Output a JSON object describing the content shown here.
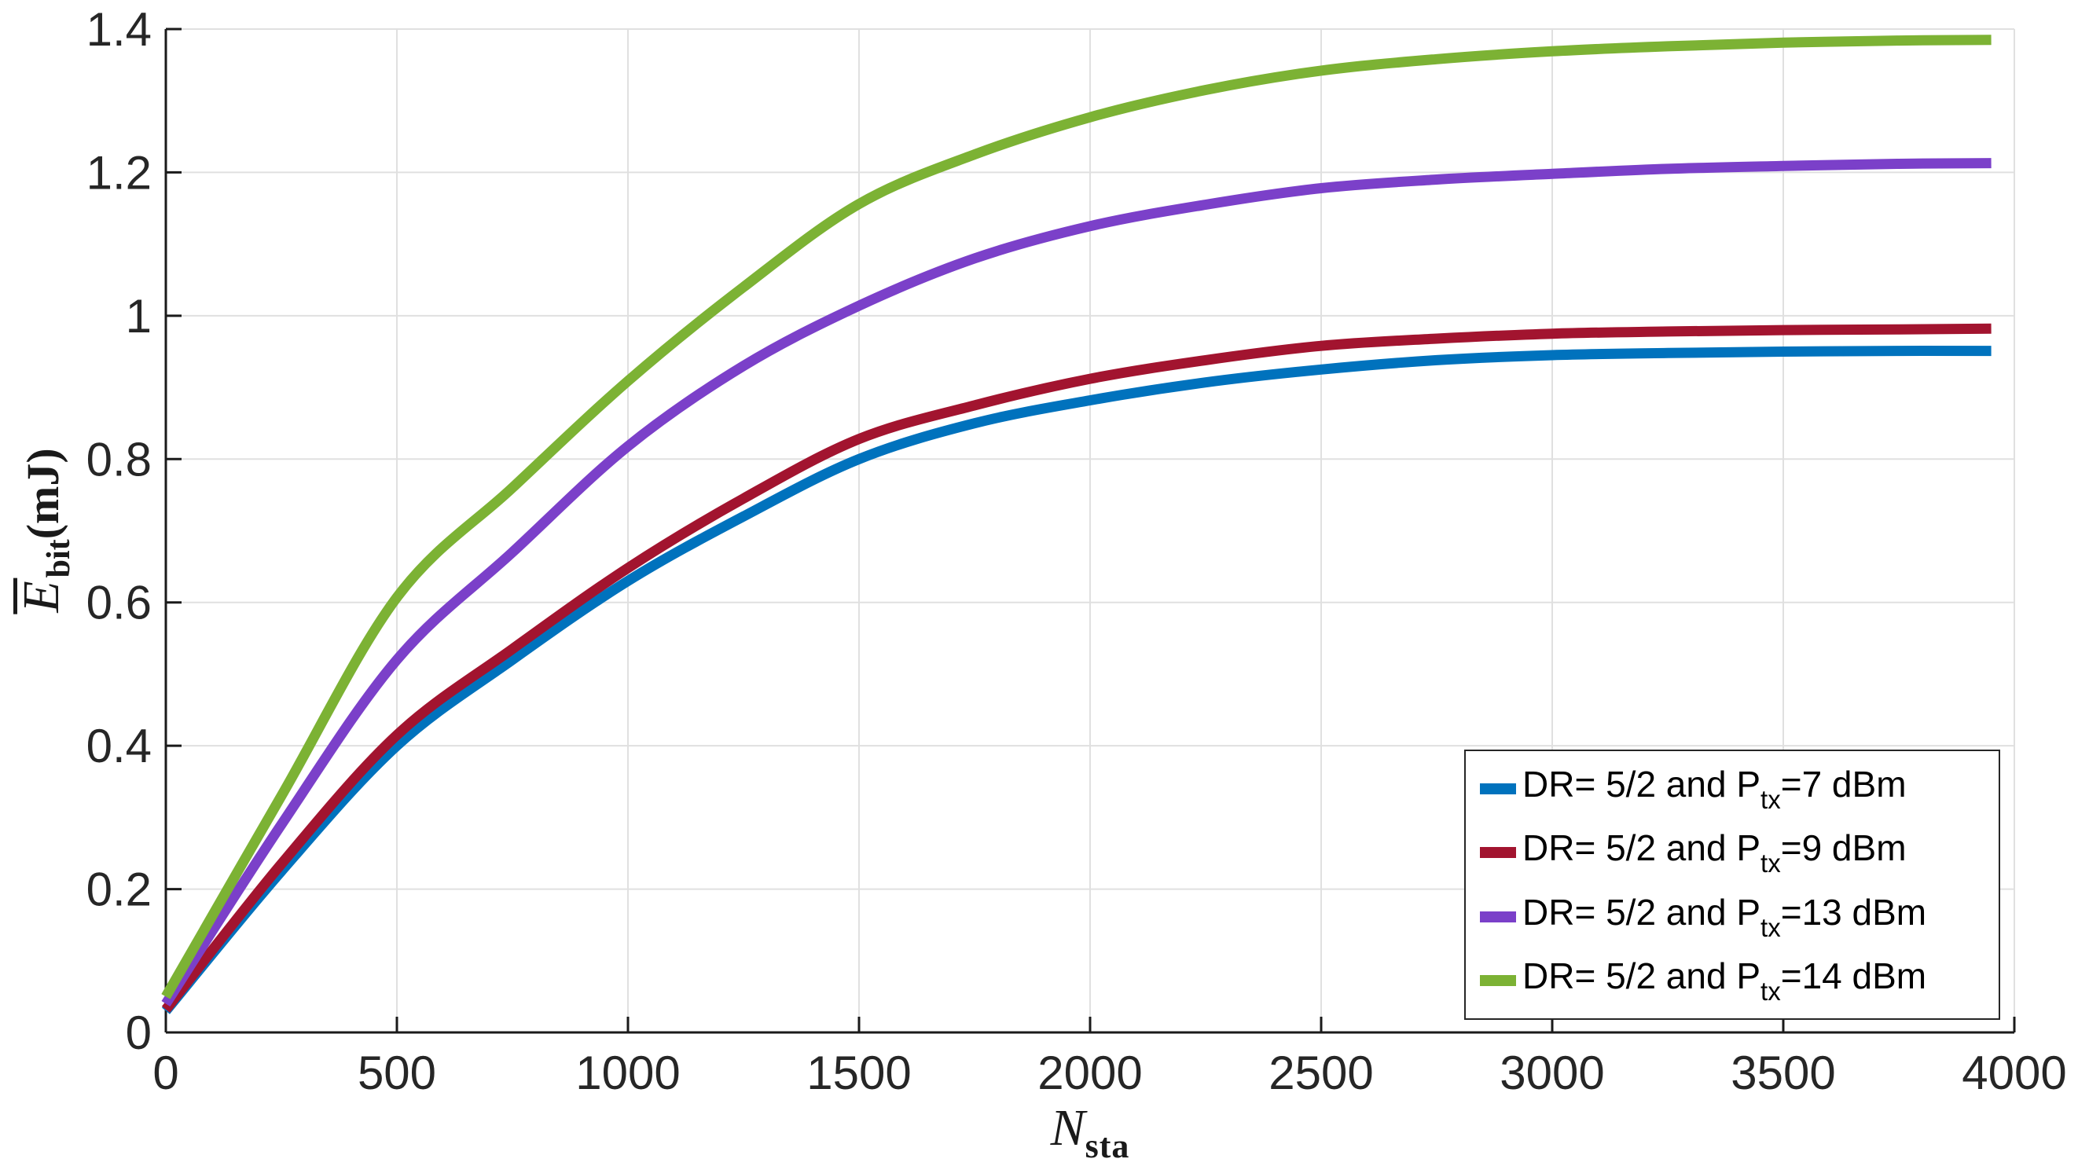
{
  "chart_data": {
    "type": "line",
    "title": "",
    "xlabel": {
      "main": "N",
      "sub": "sta"
    },
    "ylabel": {
      "main": "E",
      "sub": "bit",
      "unit": "(mJ)"
    },
    "xlim": [
      0,
      4000
    ],
    "ylim": [
      0,
      1.4
    ],
    "xticks": [
      0,
      500,
      1000,
      1500,
      2000,
      2500,
      3000,
      3500,
      4000
    ],
    "yticks": [
      0,
      0.2,
      0.4,
      0.6,
      0.8,
      1,
      1.2,
      1.4
    ],
    "grid": true,
    "legend_position": "lower right",
    "x": [
      0,
      250,
      500,
      750,
      1000,
      1250,
      1500,
      1750,
      2000,
      2250,
      2500,
      2750,
      3000,
      3250,
      3500,
      3750,
      3950
    ],
    "series": [
      {
        "name": "DR= 5/2 and Ptx=7 dBm",
        "color": "#0072BD",
        "values": [
          0.03,
          0.225,
          0.4,
          0.52,
          0.63,
          0.72,
          0.8,
          0.85,
          0.882,
          0.907,
          0.925,
          0.938,
          0.945,
          0.948,
          0.95,
          0.951,
          0.951
        ]
      },
      {
        "name": "DR= 5/2 and Ptx=9 dBm",
        "color": "#A2142F",
        "values": [
          0.032,
          0.235,
          0.415,
          0.535,
          0.648,
          0.745,
          0.828,
          0.875,
          0.912,
          0.938,
          0.958,
          0.968,
          0.975,
          0.978,
          0.98,
          0.981,
          0.982
        ]
      },
      {
        "name": "DR= 5/2 and Ptx=13 dBm",
        "color": "#7B40C9",
        "values": [
          0.04,
          0.29,
          0.52,
          0.67,
          0.818,
          0.93,
          1.014,
          1.08,
          1.125,
          1.155,
          1.178,
          1.19,
          1.198,
          1.205,
          1.209,
          1.212,
          1.213
        ]
      },
      {
        "name": "DR= 5/2 and Ptx=14 dBm",
        "color": "#7CB234",
        "values": [
          0.05,
          0.33,
          0.607,
          0.76,
          0.909,
          1.04,
          1.156,
          1.225,
          1.277,
          1.315,
          1.342,
          1.358,
          1.369,
          1.376,
          1.381,
          1.384,
          1.385
        ]
      }
    ],
    "axis_color": "#1a1a1a",
    "grid_color": "#e0e0e0",
    "tick_label_color": "#262626"
  },
  "legend": {
    "rows": [
      {
        "prefix": "DR= 5/2 and P",
        "sub": "tx",
        "suffix": "=7 dBm"
      },
      {
        "prefix": "DR= 5/2 and P",
        "sub": "tx",
        "suffix": "=9 dBm"
      },
      {
        "prefix": "DR= 5/2 and P",
        "sub": "tx",
        "suffix": "=13 dBm"
      },
      {
        "prefix": "DR= 5/2 and P",
        "sub": "tx",
        "suffix": "=14 dBm"
      }
    ]
  }
}
